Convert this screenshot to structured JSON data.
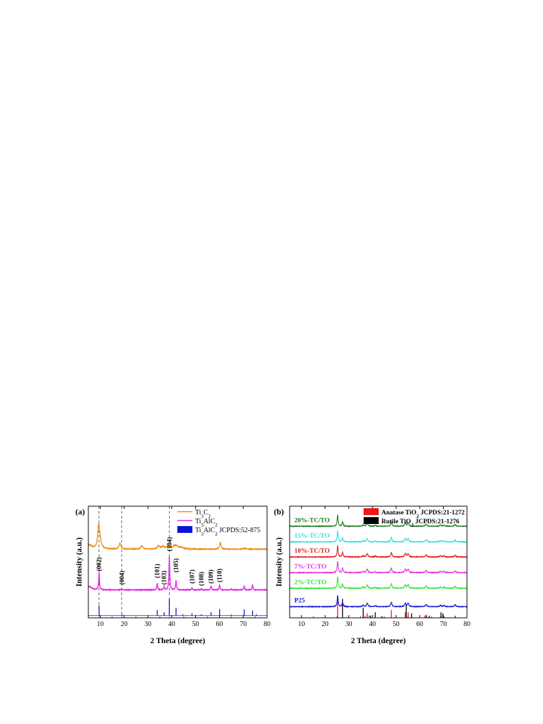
{
  "chart_data": [
    {
      "type": "line",
      "panel_label": "(a)",
      "xlabel": "2 Theta (degree)",
      "ylabel": "Intensity (a.u.)",
      "xlim": [
        5,
        80
      ],
      "xticks": [
        "10",
        "20",
        "30",
        "40",
        "50",
        "60",
        "70",
        "80"
      ],
      "legend_position": "top-right",
      "legend": [
        {
          "label_parts": [
            [
              "Ti",
              "n"
            ],
            [
              "3",
              "sub"
            ],
            [
              "C",
              "n"
            ],
            [
              "2",
              "sub"
            ]
          ],
          "color": "#f28c1e",
          "kind": "line"
        },
        {
          "label_parts": [
            [
              "Ti",
              "n"
            ],
            [
              "3",
              "sub"
            ],
            [
              "AlC",
              "n"
            ],
            [
              "2",
              "sub"
            ]
          ],
          "color": "#e12ee0",
          "kind": "line"
        },
        {
          "label_parts": [
            [
              "Ti",
              "n"
            ],
            [
              "3",
              "sub"
            ],
            [
              "AlC",
              "n"
            ],
            [
              "2",
              "sub"
            ],
            [
              " JCPDS:52-875",
              "n"
            ]
          ],
          "color": "#0a14d8",
          "kind": "bar"
        }
      ],
      "dashed_lines_x": [
        9.5,
        19.0,
        39.0
      ],
      "series": [
        {
          "color": "#f28c1e",
          "baseline": 0.615,
          "peaks": [
            [
              5.5,
              0.035,
              1.2
            ],
            [
              9.3,
              0.19,
              0.45
            ],
            [
              9.9,
              0.07,
              0.6
            ],
            [
              18.3,
              0.055,
              0.45
            ],
            [
              27.5,
              0.03,
              0.5
            ],
            [
              34.5,
              0.028,
              0.6
            ],
            [
              36.3,
              0.022,
              0.6
            ],
            [
              38.0,
              0.015,
              0.5
            ],
            [
              39.0,
              0.02,
              0.6
            ],
            [
              41.5,
              0.035,
              1.2
            ],
            [
              44.0,
              0.012,
              1.0
            ],
            [
              60.4,
              0.06,
              0.35
            ],
            [
              70.5,
              0.008,
              0.7
            ]
          ]
        },
        {
          "color": "#e12ee0",
          "baseline": 0.25,
          "peaks": [
            [
              5.5,
              0.03,
              1.2
            ],
            [
              9.5,
              0.16,
              0.2
            ],
            [
              19.1,
              0.008,
              0.25
            ],
            [
              33.9,
              0.06,
              0.2
            ],
            [
              36.8,
              0.03,
              0.2
            ],
            [
              39.0,
              0.3,
              0.2
            ],
            [
              41.8,
              0.085,
              0.2
            ],
            [
              48.5,
              0.02,
              0.2
            ],
            [
              52.4,
              0.012,
              0.2
            ],
            [
              56.5,
              0.035,
              0.2
            ],
            [
              60.1,
              0.045,
              0.2
            ],
            [
              65.0,
              0.008,
              0.2
            ],
            [
              70.4,
              0.035,
              0.2
            ],
            [
              73.9,
              0.045,
              0.2
            ]
          ]
        }
      ],
      "reference_lines": {
        "color": "#0a14d8",
        "baseline": 0.02,
        "x": [
          9.5,
          19.1,
          33.9,
          36.8,
          39.0,
          41.8,
          44.6,
          48.5,
          52.4,
          56.5,
          60.1,
          65.0,
          70.4,
          73.9,
          75.5
        ],
        "heights": [
          0.09,
          0.012,
          0.05,
          0.03,
          0.15,
          0.07,
          0.012,
          0.02,
          0.012,
          0.03,
          0.06,
          0.01,
          0.055,
          0.045,
          0.012
        ]
      },
      "annotations": [
        {
          "text": "(002)",
          "x": 9.5,
          "y": 0.48
        },
        {
          "text": "(004)",
          "x": 19.1,
          "y": 0.36
        },
        {
          "text": "(101)",
          "x": 33.9,
          "y": 0.42
        },
        {
          "text": "(103)",
          "x": 36.8,
          "y": 0.36
        },
        {
          "text": "(104)",
          "x": 39.0,
          "y": 0.66
        },
        {
          "text": "(105)",
          "x": 41.8,
          "y": 0.47
        },
        {
          "text": "(107)",
          "x": 48.5,
          "y": 0.37
        },
        {
          "text": "(108)",
          "x": 52.4,
          "y": 0.35
        },
        {
          "text": "(109)",
          "x": 56.5,
          "y": 0.37
        },
        {
          "text": "(110)",
          "x": 60.1,
          "y": 0.38
        }
      ]
    },
    {
      "type": "line",
      "panel_label": "(b)",
      "xlabel": "2 Theta (degree)",
      "ylabel": "Intensity (a.u.)",
      "xlim": [
        5,
        80
      ],
      "xticks": [
        "10",
        "20",
        "30",
        "40",
        "50",
        "60",
        "70",
        "80"
      ],
      "legend_position": "top-right",
      "legend": [
        {
          "label_parts": [
            [
              "Anatase TiO",
              "n"
            ],
            [
              "2",
              "sub"
            ],
            [
              " JCPDS:21-1272",
              "n"
            ]
          ],
          "color": "#f01818",
          "kind": "bar"
        },
        {
          "label_parts": [
            [
              "Rutile TiO",
              "n"
            ],
            [
              "2",
              "sub"
            ],
            [
              " JCPDS:21-1276",
              "n"
            ]
          ],
          "color": "#000000",
          "kind": "bar"
        }
      ],
      "series": [
        {
          "name": "P25",
          "color": "#1414d8",
          "baseline": 0.1
        },
        {
          "name": "2%-TC/TO",
          "color": "#33e033",
          "baseline": 0.265
        },
        {
          "name": "7%-TC/TO",
          "color": "#e12ee0",
          "baseline": 0.405
        },
        {
          "name": "10%-TC/TO",
          "color": "#e01818",
          "baseline": 0.545
        },
        {
          "name": "15%-TC/TO",
          "color": "#2ee0e0",
          "baseline": 0.68
        },
        {
          "name": "20%-TC/TO",
          "color": "#1a7a1a",
          "baseline": 0.82
        }
      ],
      "tio2_peaks": [
        [
          25.3,
          0.1,
          0.25
        ],
        [
          27.4,
          0.04,
          0.25
        ],
        [
          36.1,
          0.012,
          0.3
        ],
        [
          37.8,
          0.03,
          0.35
        ],
        [
          41.2,
          0.008,
          0.3
        ],
        [
          48.0,
          0.04,
          0.3
        ],
        [
          53.9,
          0.03,
          0.35
        ],
        [
          55.1,
          0.03,
          0.35
        ],
        [
          62.7,
          0.02,
          0.35
        ],
        [
          68.8,
          0.012,
          0.35
        ],
        [
          70.3,
          0.01,
          0.35
        ],
        [
          75.0,
          0.016,
          0.35
        ]
      ],
      "reference_lines": [
        {
          "color": "#f01818",
          "x": [
            25.3,
            36.9,
            37.8,
            38.6,
            48.0,
            53.9,
            55.1,
            62.1,
            62.7,
            68.8,
            70.3,
            75.0
          ],
          "heights": [
            0.19,
            0.02,
            0.04,
            0.02,
            0.07,
            0.05,
            0.05,
            0.02,
            0.03,
            0.015,
            0.012,
            0.02
          ]
        },
        {
          "color": "#000000",
          "x": [
            27.4,
            36.1,
            39.2,
            41.2,
            44.0,
            54.3,
            56.6,
            62.8,
            64.0,
            69.0,
            69.8
          ],
          "heights": [
            0.17,
            0.09,
            0.02,
            0.05,
            0.015,
            0.12,
            0.04,
            0.02,
            0.02,
            0.05,
            0.04
          ]
        }
      ]
    }
  ]
}
